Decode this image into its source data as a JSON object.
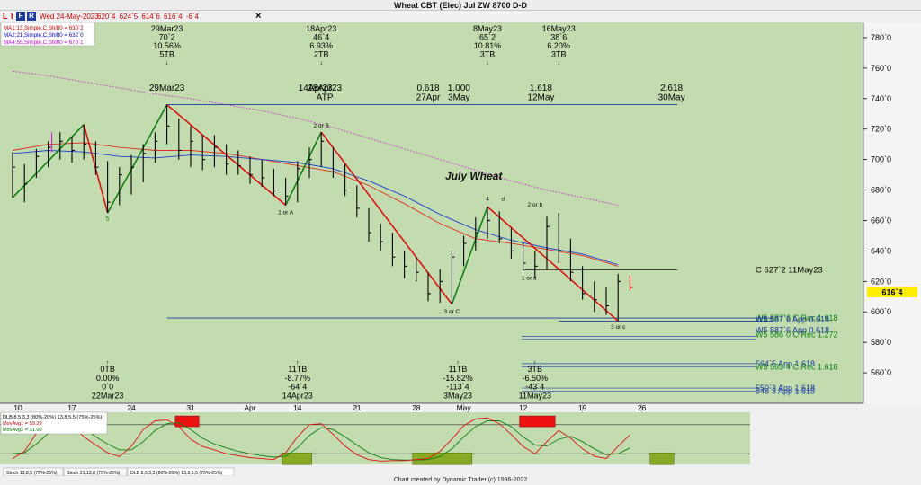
{
  "window": {
    "title": "Wheat CBT (Elec) Jul ZW 8700 D-D",
    "footer": "Chart created by Dynamic Trader  (c) 1996-2022"
  },
  "toolbar": {
    "icons": [
      "L",
      "I",
      "F",
      "R"
    ],
    "date": "Wed 24-May-2023",
    "prices": "620`4  624`5  614`6  616`4  -6`4",
    "close_button": "×"
  },
  "ma_legend": [
    {
      "label": "MA1:13,Simple,C,Shift0 = 630`2",
      "color": "#cc0000"
    },
    {
      "label": "MA2:21,Simple,C,Shift0 = 632`0",
      "color": "#0000cc"
    },
    {
      "label": "MA4:55,Simple,C,Shift0 = 670`1",
      "color": "#cc00cc"
    }
  ],
  "stoch_legend": [
    {
      "label": "DLB 8,5,3,3 (80%-20%) 13,8,5,5 (75%-25%)",
      "color": "#000000"
    },
    {
      "label": "MovAvg1 = 59.29",
      "color": "#cc0000"
    },
    {
      "label": "MovAvg2 = 31.60",
      "color": "#008000"
    }
  ],
  "bottom_tabs": [
    "Stoch 13,8,5 (75%-25%)",
    "Stoch 21,13,8 (75%-25%)",
    "DLB 8,5,3,3 (80%-20%) 13,8,5,5 (75%-25%)"
  ],
  "colors": {
    "chart_bg": "#c2dcb0",
    "bar": "#000000",
    "ma13": "#e03020",
    "ma21": "#2040d0",
    "ma55": "#cc44cc",
    "wave_up": "#108010",
    "wave_down": "#e01010",
    "last_price_bg": "#ffee00",
    "stoch_red_box": "#ee1111",
    "stoch_green_box": "#88aa22"
  },
  "chart_data": {
    "type": "ohlc",
    "title": "Wheat CBT (Elec) Jul ZW 8700 D-D",
    "annotation_title": "July Wheat",
    "ylim": [
      540,
      790
    ],
    "y_ticks": [
      "780`0",
      "760`0",
      "740`0",
      "720`0",
      "700`0",
      "680`0",
      "660`0",
      "640`0",
      "620`0",
      "600`0",
      "580`0",
      "560`0"
    ],
    "y_tick_values": [
      780,
      760,
      740,
      720,
      700,
      680,
      660,
      640,
      620,
      600,
      580,
      560
    ],
    "x_ticks": [
      "10",
      "17",
      "24",
      "31",
      "Apr",
      "14",
      "21",
      "28",
      "May",
      "12",
      "19",
      "26"
    ],
    "last_price": "616`4",
    "bars": [
      {
        "d": "Mar 10",
        "h": 705,
        "l": 675,
        "c": 695
      },
      {
        "d": "Mar 13",
        "h": 697,
        "l": 672,
        "c": 684
      },
      {
        "d": "Mar 14",
        "h": 707,
        "l": 688,
        "c": 702
      },
      {
        "d": "Mar 15",
        "h": 712,
        "l": 695,
        "c": 708
      },
      {
        "d": "Mar 16",
        "h": 718,
        "l": 700,
        "c": 712
      },
      {
        "d": "Mar 17",
        "h": 715,
        "l": 698,
        "c": 706
      },
      {
        "d": "Mar 20",
        "h": 723,
        "l": 700,
        "c": 710
      },
      {
        "d": "Mar 21",
        "h": 712,
        "l": 690,
        "c": 695
      },
      {
        "d": "Mar 22",
        "h": 699,
        "l": 665,
        "c": 672
      },
      {
        "d": "Mar 23",
        "h": 695,
        "l": 670,
        "c": 690
      },
      {
        "d": "Mar 24",
        "h": 703,
        "l": 677,
        "c": 695
      },
      {
        "d": "Mar 27",
        "h": 710,
        "l": 685,
        "c": 704
      },
      {
        "d": "Mar 28",
        "h": 718,
        "l": 698,
        "c": 712
      },
      {
        "d": "Mar 29",
        "h": 736,
        "l": 710,
        "c": 722
      },
      {
        "d": "Mar 30",
        "h": 727,
        "l": 700,
        "c": 706
      },
      {
        "d": "Mar 31",
        "h": 722,
        "l": 695,
        "c": 712
      },
      {
        "d": "Apr 03",
        "h": 716,
        "l": 693,
        "c": 700
      },
      {
        "d": "Apr 04",
        "h": 716,
        "l": 695,
        "c": 708
      },
      {
        "d": "Apr 05",
        "h": 710,
        "l": 690,
        "c": 697
      },
      {
        "d": "Apr 06",
        "h": 706,
        "l": 690,
        "c": 696
      },
      {
        "d": "Apr 10",
        "h": 702,
        "l": 684,
        "c": 690
      },
      {
        "d": "Apr 11",
        "h": 700,
        "l": 682,
        "c": 688
      },
      {
        "d": "Apr 12",
        "h": 694,
        "l": 676,
        "c": 680
      },
      {
        "d": "Apr 13",
        "h": 688,
        "l": 670,
        "c": 676
      },
      {
        "d": "Apr 14",
        "h": 699,
        "l": 672,
        "c": 694
      },
      {
        "d": "Apr 17",
        "h": 708,
        "l": 688,
        "c": 700
      },
      {
        "d": "Apr 18",
        "h": 718,
        "l": 695,
        "c": 712
      },
      {
        "d": "Apr 19",
        "h": 708,
        "l": 688,
        "c": 692
      },
      {
        "d": "Apr 20",
        "h": 697,
        "l": 676,
        "c": 680
      },
      {
        "d": "Apr 21",
        "h": 683,
        "l": 662,
        "c": 668
      },
      {
        "d": "Apr 24",
        "h": 668,
        "l": 646,
        "c": 652
      },
      {
        "d": "Apr 25",
        "h": 658,
        "l": 640,
        "c": 646
      },
      {
        "d": "Apr 26",
        "h": 652,
        "l": 630,
        "c": 636
      },
      {
        "d": "Apr 27",
        "h": 640,
        "l": 622,
        "c": 630
      },
      {
        "d": "Apr 28",
        "h": 636,
        "l": 620,
        "c": 626
      },
      {
        "d": "May 01",
        "h": 626,
        "l": 607,
        "c": 612
      },
      {
        "d": "May 02",
        "h": 628,
        "l": 606,
        "c": 620
      },
      {
        "d": "May 03",
        "h": 640,
        "l": 605,
        "c": 636
      },
      {
        "d": "May 04",
        "h": 650,
        "l": 630,
        "c": 645
      },
      {
        "d": "May 05",
        "h": 662,
        "l": 640,
        "c": 652
      },
      {
        "d": "May 08",
        "h": 669,
        "l": 648,
        "c": 660
      },
      {
        "d": "May 09",
        "h": 666,
        "l": 645,
        "c": 648
      },
      {
        "d": "May 10",
        "h": 655,
        "l": 635,
        "c": 640
      },
      {
        "d": "May 11",
        "h": 645,
        "l": 627,
        "c": 632
      },
      {
        "d": "May 12",
        "h": 640,
        "l": 622,
        "c": 630
      },
      {
        "d": "May 15",
        "h": 663,
        "l": 628,
        "c": 656
      },
      {
        "d": "May 16",
        "h": 665,
        "l": 632,
        "c": 640
      },
      {
        "d": "May 17",
        "h": 648,
        "l": 620,
        "c": 626
      },
      {
        "d": "May 18",
        "h": 630,
        "l": 608,
        "c": 612
      },
      {
        "d": "May 19",
        "h": 620,
        "l": 600,
        "c": 608
      },
      {
        "d": "May 22",
        "h": 616,
        "l": 598,
        "c": 604
      },
      {
        "d": "May 23",
        "h": 625,
        "l": 594,
        "c": 620
      },
      {
        "d": "May 24",
        "h": 624,
        "l": 614,
        "c": 616
      }
    ],
    "ma_lines": {
      "ma13": [
        [
          0,
          706
        ],
        [
          3,
          710
        ],
        [
          6,
          711
        ],
        [
          9,
          708
        ],
        [
          12,
          706
        ],
        [
          15,
          706
        ],
        [
          18,
          704
        ],
        [
          21,
          700
        ],
        [
          24,
          696
        ],
        [
          27,
          692
        ],
        [
          30,
          683
        ],
        [
          33,
          671
        ],
        [
          36,
          658
        ],
        [
          39,
          648
        ],
        [
          42,
          645
        ],
        [
          45,
          641
        ],
        [
          48,
          637
        ],
        [
          51,
          630
        ]
      ],
      "ma21": [
        [
          0,
          704
        ],
        [
          3,
          706
        ],
        [
          6,
          705
        ],
        [
          9,
          702
        ],
        [
          12,
          701
        ],
        [
          15,
          703
        ],
        [
          18,
          702
        ],
        [
          21,
          700
        ],
        [
          24,
          698
        ],
        [
          27,
          694
        ],
        [
          30,
          686
        ],
        [
          33,
          676
        ],
        [
          36,
          664
        ],
        [
          39,
          654
        ],
        [
          42,
          647
        ],
        [
          45,
          642
        ],
        [
          48,
          638
        ],
        [
          51,
          631
        ]
      ],
      "ma55": [
        [
          0,
          758
        ],
        [
          3,
          755
        ],
        [
          6,
          751
        ],
        [
          9,
          747
        ],
        [
          12,
          743
        ],
        [
          15,
          740
        ],
        [
          18,
          736
        ],
        [
          21,
          732
        ],
        [
          24,
          727
        ],
        [
          27,
          721
        ],
        [
          30,
          714
        ],
        [
          33,
          707
        ],
        [
          36,
          700
        ],
        [
          39,
          693
        ],
        [
          42,
          686
        ],
        [
          45,
          680
        ],
        [
          48,
          675
        ],
        [
          51,
          670
        ]
      ]
    },
    "wave_lines": [
      {
        "from": [
          0,
          675
        ],
        "to": [
          6,
          723
        ],
        "dir": "up"
      },
      {
        "from": [
          6,
          723
        ],
        "to": [
          8,
          665
        ],
        "dir": "down"
      },
      {
        "from": [
          8,
          665
        ],
        "to": [
          13,
          736
        ],
        "dir": "up"
      },
      {
        "from": [
          13,
          736
        ],
        "to": [
          23,
          670
        ],
        "dir": "down"
      },
      {
        "from": [
          23,
          670
        ],
        "to": [
          26,
          718
        ],
        "dir": "up"
      },
      {
        "from": [
          26,
          718
        ],
        "to": [
          37,
          605
        ],
        "dir": "down"
      },
      {
        "from": [
          37,
          605
        ],
        "to": [
          40,
          669
        ],
        "dir": "up"
      },
      {
        "from": [
          40,
          669
        ],
        "to": [
          51,
          594
        ],
        "dir": "down"
      }
    ],
    "h_lines": [
      {
        "y": 736,
        "x0": 13,
        "x1": 56,
        "color": "#1a3aa0"
      },
      {
        "y": 627.5,
        "x0": 43,
        "x1": 56,
        "color": "#303030",
        "label": "C 627`2 11May23"
      },
      {
        "y": 596,
        "x0": 13,
        "x1": 64,
        "color": "#1a3aa0"
      },
      {
        "y": 594,
        "x0": 46,
        "x1": 64,
        "color": "#1a3aa0"
      }
    ],
    "right_labels": [
      {
        "y": 596,
        "text": "W5 587`6 C Rec 1.618",
        "color": "#108010"
      },
      {
        "y": 595,
        "text": "W5 587`6 App 0.618",
        "color": "#1a3aa0"
      },
      {
        "y": 588,
        "text": "W5 587`6 App 0.618",
        "color": "#1a3aa0"
      },
      {
        "y": 585,
        "text": "W5 586`0 C Rec 1.272",
        "color": "#108010"
      },
      {
        "y": 566,
        "text": "564`5 App 1.618",
        "color": "#1a3aa0"
      },
      {
        "y": 564,
        "text": "W5 563`4 C Rec 1.618",
        "color": "#108010"
      },
      {
        "y": 550,
        "text": "550`3 App 1.618",
        "color": "#1a3aa0"
      },
      {
        "y": 548,
        "text": "548`3 App 1.618",
        "color": "#1a3aa0"
      }
    ],
    "swing_labels": [
      {
        "i": 8,
        "y": 660,
        "text": "5",
        "color": "#108010"
      },
      {
        "i": 23,
        "y": 664,
        "text": "1 or A",
        "color": "#000"
      },
      {
        "i": 26,
        "y": 721,
        "text": "2 or B",
        "color": "#000"
      },
      {
        "i": 37,
        "y": 599,
        "text": "3 or C",
        "color": "#000"
      },
      {
        "i": 40,
        "y": 673,
        "text": "4",
        "color": "#000"
      },
      {
        "i": 41.3,
        "y": 673,
        "text": "d",
        "color": "#000"
      },
      {
        "i": 44,
        "y": 669,
        "text": "2 or b",
        "color": "#000"
      },
      {
        "i": 43.5,
        "y": 621,
        "text": "1 or a",
        "color": "#000"
      },
      {
        "i": 51,
        "y": 589,
        "text": "3 or c",
        "color": "#000"
      }
    ],
    "top_annotations": [
      {
        "i": 13,
        "lines": [
          "29Mar23",
          "70`2",
          "10.56%",
          "5TB"
        ]
      },
      {
        "i": 26,
        "lines": [
          "18Apr23",
          "46`4",
          "6.93%",
          "2TB"
        ]
      },
      {
        "i": 40,
        "lines": [
          "8May23",
          "65`2",
          "10.81%",
          "3TB"
        ]
      },
      {
        "i": 46,
        "lines": [
          "16May23",
          "38`6",
          "6.20%",
          "3TB"
        ]
      }
    ],
    "time_targets": [
      {
        "i": 13,
        "lines": [
          "29Mar23"
        ]
      },
      {
        "i": 25.5,
        "lines": [
          "14Apr23"
        ]
      },
      {
        "i": 26.3,
        "lines": [
          "18Apr23",
          "ATP"
        ]
      },
      {
        "i": 35,
        "lines": [
          "0.618",
          "27Apr"
        ]
      },
      {
        "i": 37.6,
        "lines": [
          "1.000",
          "3May"
        ]
      },
      {
        "i": 44.5,
        "lines": [
          "1.618",
          "12May"
        ]
      },
      {
        "i": 55.5,
        "lines": [
          "2.618",
          "30May"
        ]
      }
    ],
    "bottom_annotations": [
      {
        "i": 8,
        "lines": [
          "0TB",
          "0.00%",
          "0`0",
          "22Mar23"
        ]
      },
      {
        "i": 24,
        "lines": [
          "11TB",
          "-8.77%",
          "-64`4",
          "14Apr23"
        ]
      },
      {
        "i": 37.5,
        "lines": [
          "11TB",
          "-15.82%",
          "-113`4",
          "3May23"
        ]
      },
      {
        "i": 44,
        "lines": [
          "3TB",
          "-6.50%",
          "-43`4",
          "11May23"
        ]
      }
    ],
    "stoch_red": [
      0.1,
      0.25,
      0.62,
      0.86,
      0.92,
      0.78,
      0.55,
      0.38,
      0.22,
      0.14,
      0.35,
      0.7,
      0.88,
      0.9,
      0.76,
      0.5,
      0.35,
      0.28,
      0.2,
      0.16,
      0.12,
      0.1,
      0.08,
      0.22,
      0.55,
      0.8,
      0.82,
      0.6,
      0.36,
      0.18,
      0.08,
      0.05,
      0.06,
      0.06,
      0.08,
      0.1,
      0.25,
      0.5,
      0.78,
      0.92,
      0.94,
      0.82,
      0.6,
      0.35,
      0.2,
      0.45,
      0.68,
      0.52,
      0.3,
      0.15,
      0.1,
      0.35,
      0.59
    ],
    "stoch_green": [
      0.2,
      0.22,
      0.4,
      0.62,
      0.78,
      0.82,
      0.72,
      0.55,
      0.4,
      0.28,
      0.28,
      0.45,
      0.68,
      0.82,
      0.84,
      0.7,
      0.52,
      0.4,
      0.32,
      0.25,
      0.2,
      0.16,
      0.13,
      0.15,
      0.32,
      0.58,
      0.74,
      0.7,
      0.55,
      0.38,
      0.22,
      0.12,
      0.08,
      0.07,
      0.07,
      0.08,
      0.14,
      0.3,
      0.55,
      0.76,
      0.88,
      0.88,
      0.76,
      0.55,
      0.38,
      0.36,
      0.5,
      0.56,
      0.45,
      0.3,
      0.18,
      0.2,
      0.32
    ]
  }
}
